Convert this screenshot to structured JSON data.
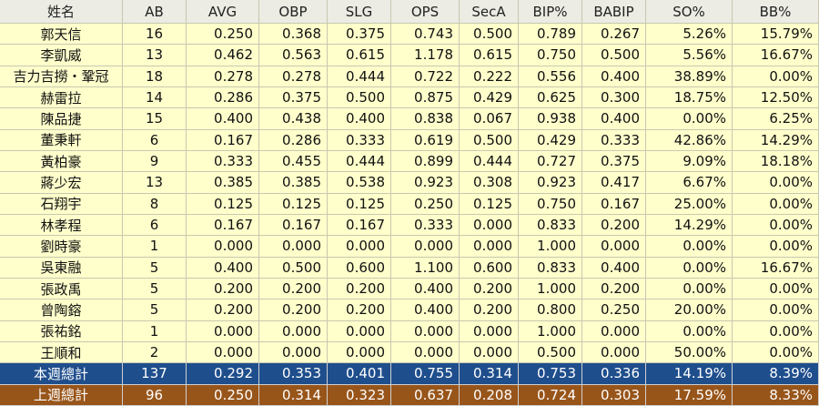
{
  "table": {
    "columns": [
      "姓名",
      "AB",
      "AVG",
      "OBP",
      "SLG",
      "OPS",
      "SecA",
      "BIP%",
      "BABIP",
      "SO%",
      "BB%"
    ],
    "rows": [
      [
        "郭天信",
        "16",
        "0.250",
        "0.368",
        "0.375",
        "0.743",
        "0.500",
        "0.789",
        "0.267",
        "5.26%",
        "15.79%"
      ],
      [
        "李凱威",
        "13",
        "0.462",
        "0.563",
        "0.615",
        "1.178",
        "0.615",
        "0.750",
        "0.500",
        "5.56%",
        "16.67%"
      ],
      [
        "吉力吉撈・鞏冠",
        "18",
        "0.278",
        "0.278",
        "0.444",
        "0.722",
        "0.222",
        "0.556",
        "0.400",
        "38.89%",
        "0.00%"
      ],
      [
        "赫雷拉",
        "14",
        "0.286",
        "0.375",
        "0.500",
        "0.875",
        "0.429",
        "0.625",
        "0.300",
        "18.75%",
        "12.50%"
      ],
      [
        "陳品捷",
        "15",
        "0.400",
        "0.438",
        "0.400",
        "0.838",
        "0.067",
        "0.938",
        "0.400",
        "0.00%",
        "6.25%"
      ],
      [
        "董秉軒",
        "6",
        "0.167",
        "0.286",
        "0.333",
        "0.619",
        "0.500",
        "0.429",
        "0.333",
        "42.86%",
        "14.29%"
      ],
      [
        "黃柏豪",
        "9",
        "0.333",
        "0.455",
        "0.444",
        "0.899",
        "0.444",
        "0.727",
        "0.375",
        "9.09%",
        "18.18%"
      ],
      [
        "蔣少宏",
        "13",
        "0.385",
        "0.385",
        "0.538",
        "0.923",
        "0.308",
        "0.923",
        "0.417",
        "6.67%",
        "0.00%"
      ],
      [
        "石翔宇",
        "8",
        "0.125",
        "0.125",
        "0.125",
        "0.250",
        "0.125",
        "0.750",
        "0.167",
        "25.00%",
        "0.00%"
      ],
      [
        "林孝程",
        "6",
        "0.167",
        "0.167",
        "0.167",
        "0.333",
        "0.000",
        "0.833",
        "0.200",
        "14.29%",
        "0.00%"
      ],
      [
        "劉時豪",
        "1",
        "0.000",
        "0.000",
        "0.000",
        "0.000",
        "0.000",
        "1.000",
        "0.000",
        "0.00%",
        "0.00%"
      ],
      [
        "吳東融",
        "5",
        "0.400",
        "0.500",
        "0.600",
        "1.100",
        "0.600",
        "0.833",
        "0.400",
        "0.00%",
        "16.67%"
      ],
      [
        "張政禹",
        "5",
        "0.200",
        "0.200",
        "0.200",
        "0.400",
        "0.200",
        "1.000",
        "0.200",
        "0.00%",
        "0.00%"
      ],
      [
        "曾陶鎔",
        "5",
        "0.200",
        "0.200",
        "0.200",
        "0.400",
        "0.200",
        "0.800",
        "0.250",
        "20.00%",
        "0.00%"
      ],
      [
        "張祐銘",
        "1",
        "0.000",
        "0.000",
        "0.000",
        "0.000",
        "0.000",
        "1.000",
        "0.000",
        "0.00%",
        "0.00%"
      ],
      [
        "王順和",
        "2",
        "0.000",
        "0.000",
        "0.000",
        "0.000",
        "0.000",
        "0.500",
        "0.000",
        "50.00%",
        "0.00%"
      ]
    ],
    "totals": [
      [
        "本週總計",
        "137",
        "0.292",
        "0.353",
        "0.401",
        "0.755",
        "0.314",
        "0.753",
        "0.336",
        "14.19%",
        "8.39%"
      ],
      [
        "上週總計",
        "96",
        "0.250",
        "0.314",
        "0.323",
        "0.637",
        "0.208",
        "0.724",
        "0.303",
        "17.59%",
        "8.33%"
      ]
    ]
  }
}
